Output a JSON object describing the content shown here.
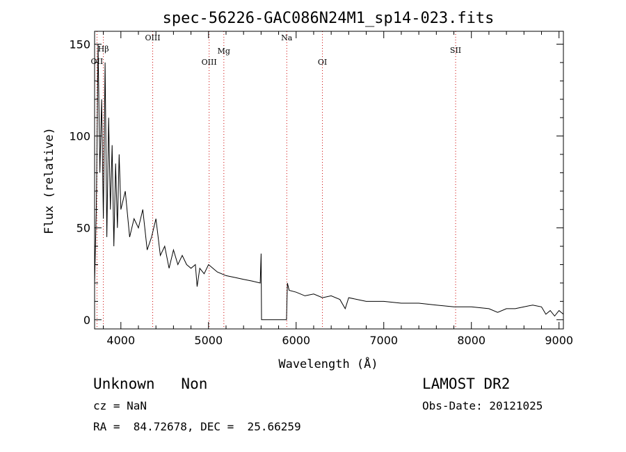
{
  "chart_data": {
    "type": "line",
    "title": "spec-56226-GAC086N24M1_sp14-023.fits",
    "xlabel": "Wavelength (Å)",
    "ylabel": "Flux (relative)",
    "xlim": [
      3700,
      9050
    ],
    "ylim": [
      -5,
      157
    ],
    "xticks": [
      4000,
      5000,
      6000,
      7000,
      8000,
      9000
    ],
    "yticks": [
      0,
      50,
      100,
      150
    ],
    "grid": false,
    "spectral_lines": [
      {
        "name": "OII",
        "wavelength": 3727
      },
      {
        "name": "Hβ",
        "wavelength": 3800
      },
      {
        "name": "OIII",
        "wavelength": 4363
      },
      {
        "name": "OIII",
        "wavelength": 5007
      },
      {
        "name": "Mg",
        "wavelength": 5175
      },
      {
        "name": "Na",
        "wavelength": 5893
      },
      {
        "name": "OI",
        "wavelength": 6300
      },
      {
        "name": "SII",
        "wavelength": 7820
      }
    ],
    "line_color": "#cc0000",
    "series": [
      {
        "color": "#000000",
        "x": [
          3700,
          3720,
          3740,
          3760,
          3780,
          3800,
          3820,
          3840,
          3860,
          3880,
          3900,
          3920,
          3940,
          3960,
          3980,
          4000,
          4050,
          4100,
          4150,
          4200,
          4250,
          4300,
          4350,
          4400,
          4450,
          4500,
          4550,
          4600,
          4650,
          4700,
          4750,
          4800,
          4850,
          4870,
          4900,
          4950,
          5000,
          5100,
          5200,
          5300,
          5400,
          5500,
          5590,
          5600,
          5605,
          5890,
          5900,
          5920,
          6000,
          6100,
          6200,
          6300,
          6400,
          6500,
          6560,
          6600,
          6700,
          6800,
          6900,
          7000,
          7200,
          7400,
          7600,
          7800,
          8000,
          8200,
          8300,
          8400,
          8500,
          8600,
          8700,
          8800,
          8850,
          8900,
          8950,
          9000,
          9050
        ],
        "y": [
          20,
          60,
          150,
          80,
          120,
          55,
          140,
          45,
          110,
          60,
          95,
          40,
          85,
          50,
          90,
          60,
          70,
          45,
          55,
          50,
          60,
          38,
          45,
          55,
          35,
          40,
          28,
          38,
          30,
          35,
          30,
          28,
          30,
          18,
          28,
          25,
          30,
          26,
          24,
          23,
          22,
          21,
          20,
          36,
          0,
          0,
          20,
          16,
          15,
          13,
          14,
          12,
          13,
          11,
          6,
          12,
          11,
          10,
          10,
          10,
          9,
          9,
          8,
          7,
          7,
          6,
          4,
          6,
          6,
          7,
          8,
          7,
          3,
          5,
          2,
          5,
          3
        ]
      }
    ]
  },
  "info": {
    "class_line": "Unknown   Non",
    "cz_line": "cz = NaN",
    "coords_line": "RA =  84.72678, DEC =  25.66259",
    "survey": "LAMOST DR2",
    "obs_date": "Obs-Date: 20121025"
  }
}
